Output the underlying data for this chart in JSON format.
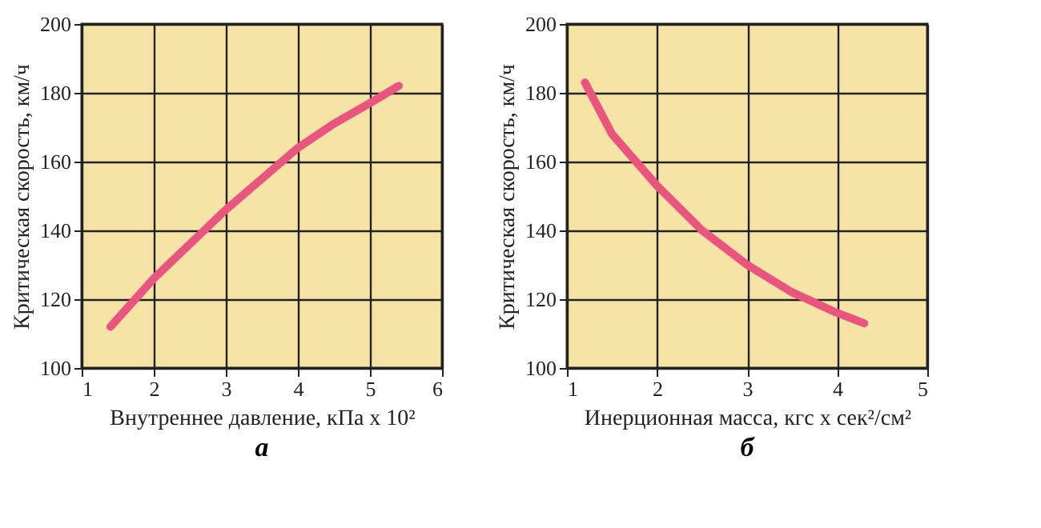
{
  "chart_data": [
    {
      "type": "line",
      "title": "а",
      "xlabel": "Внутреннее давление, кПа x 10²",
      "ylabel": "Критическая скорость, км/ч",
      "x": [
        1.4,
        2,
        2.5,
        3,
        3.5,
        4,
        4.5,
        5,
        5.4
      ],
      "series": [
        {
          "color": "#e9557f",
          "values": [
            112,
            126,
            136,
            146,
            155,
            164,
            171,
            177,
            182
          ]
        }
      ],
      "xlim": [
        1,
        6
      ],
      "xticks": [
        1,
        2,
        3,
        4,
        5,
        6
      ],
      "ylim": [
        100,
        200
      ],
      "yticks": [
        100,
        120,
        140,
        160,
        180,
        200
      ],
      "grid": true,
      "marker": "none",
      "line_style": "solid"
    },
    {
      "type": "line",
      "title": "б",
      "xlabel": "Инерционная масса, кгс x сек²/см²",
      "ylabel": "Критическая скорость, км/ч",
      "x": [
        1.2,
        1.5,
        2,
        2.5,
        3,
        3.5,
        4,
        4.3
      ],
      "series": [
        {
          "color": "#e9557f",
          "values": [
            183,
            168,
            153,
            140,
            130,
            122,
            116,
            113
          ]
        }
      ],
      "xlim": [
        1,
        5
      ],
      "xticks": [
        1,
        2,
        3,
        4,
        5
      ],
      "ylim": [
        100,
        200
      ],
      "yticks": [
        100,
        120,
        140,
        160,
        180,
        200
      ],
      "grid": true,
      "marker": "none",
      "line_style": "solid"
    }
  ]
}
